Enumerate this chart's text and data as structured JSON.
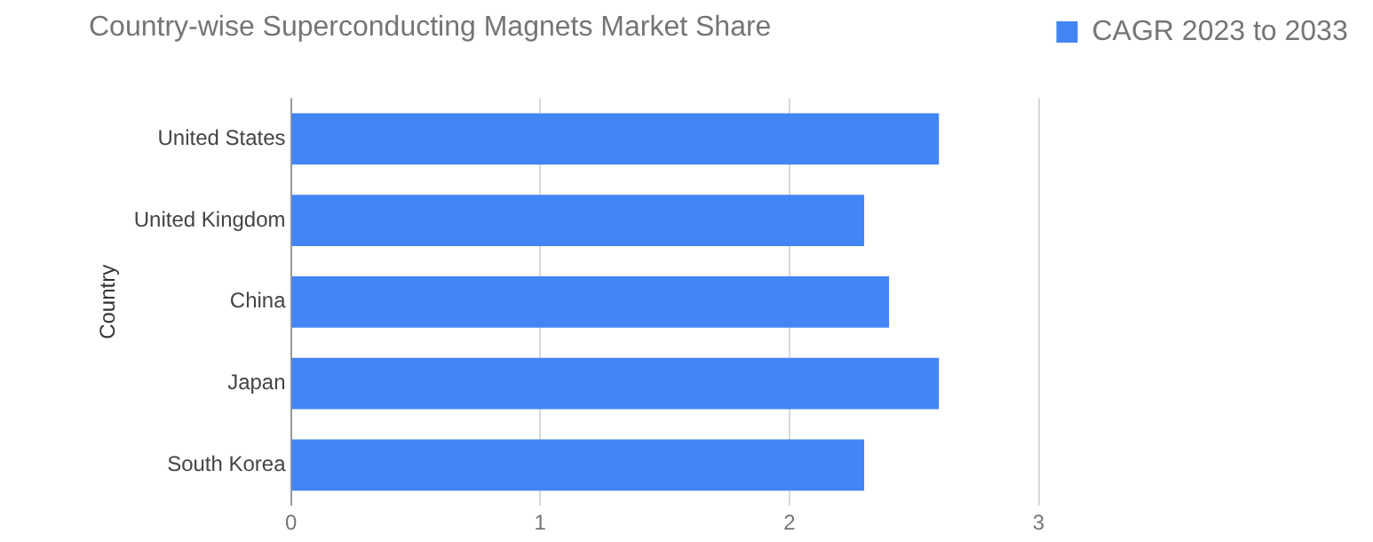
{
  "chart_data": {
    "type": "bar",
    "orientation": "horizontal",
    "title": "Country-wise Superconducting Magnets Market Share",
    "ylabel": "Country",
    "categories": [
      "United States",
      "United Kingdom",
      "China",
      "Japan",
      "South Korea"
    ],
    "series": [
      {
        "name": "CAGR 2023 to 2033",
        "color": "#4285f4",
        "values": [
          2.6,
          2.3,
          2.4,
          2.6,
          2.3
        ]
      }
    ],
    "xlim": [
      0,
      3
    ],
    "xticks": [
      0,
      1,
      2,
      3
    ],
    "grid": "x",
    "legend": "top right"
  }
}
